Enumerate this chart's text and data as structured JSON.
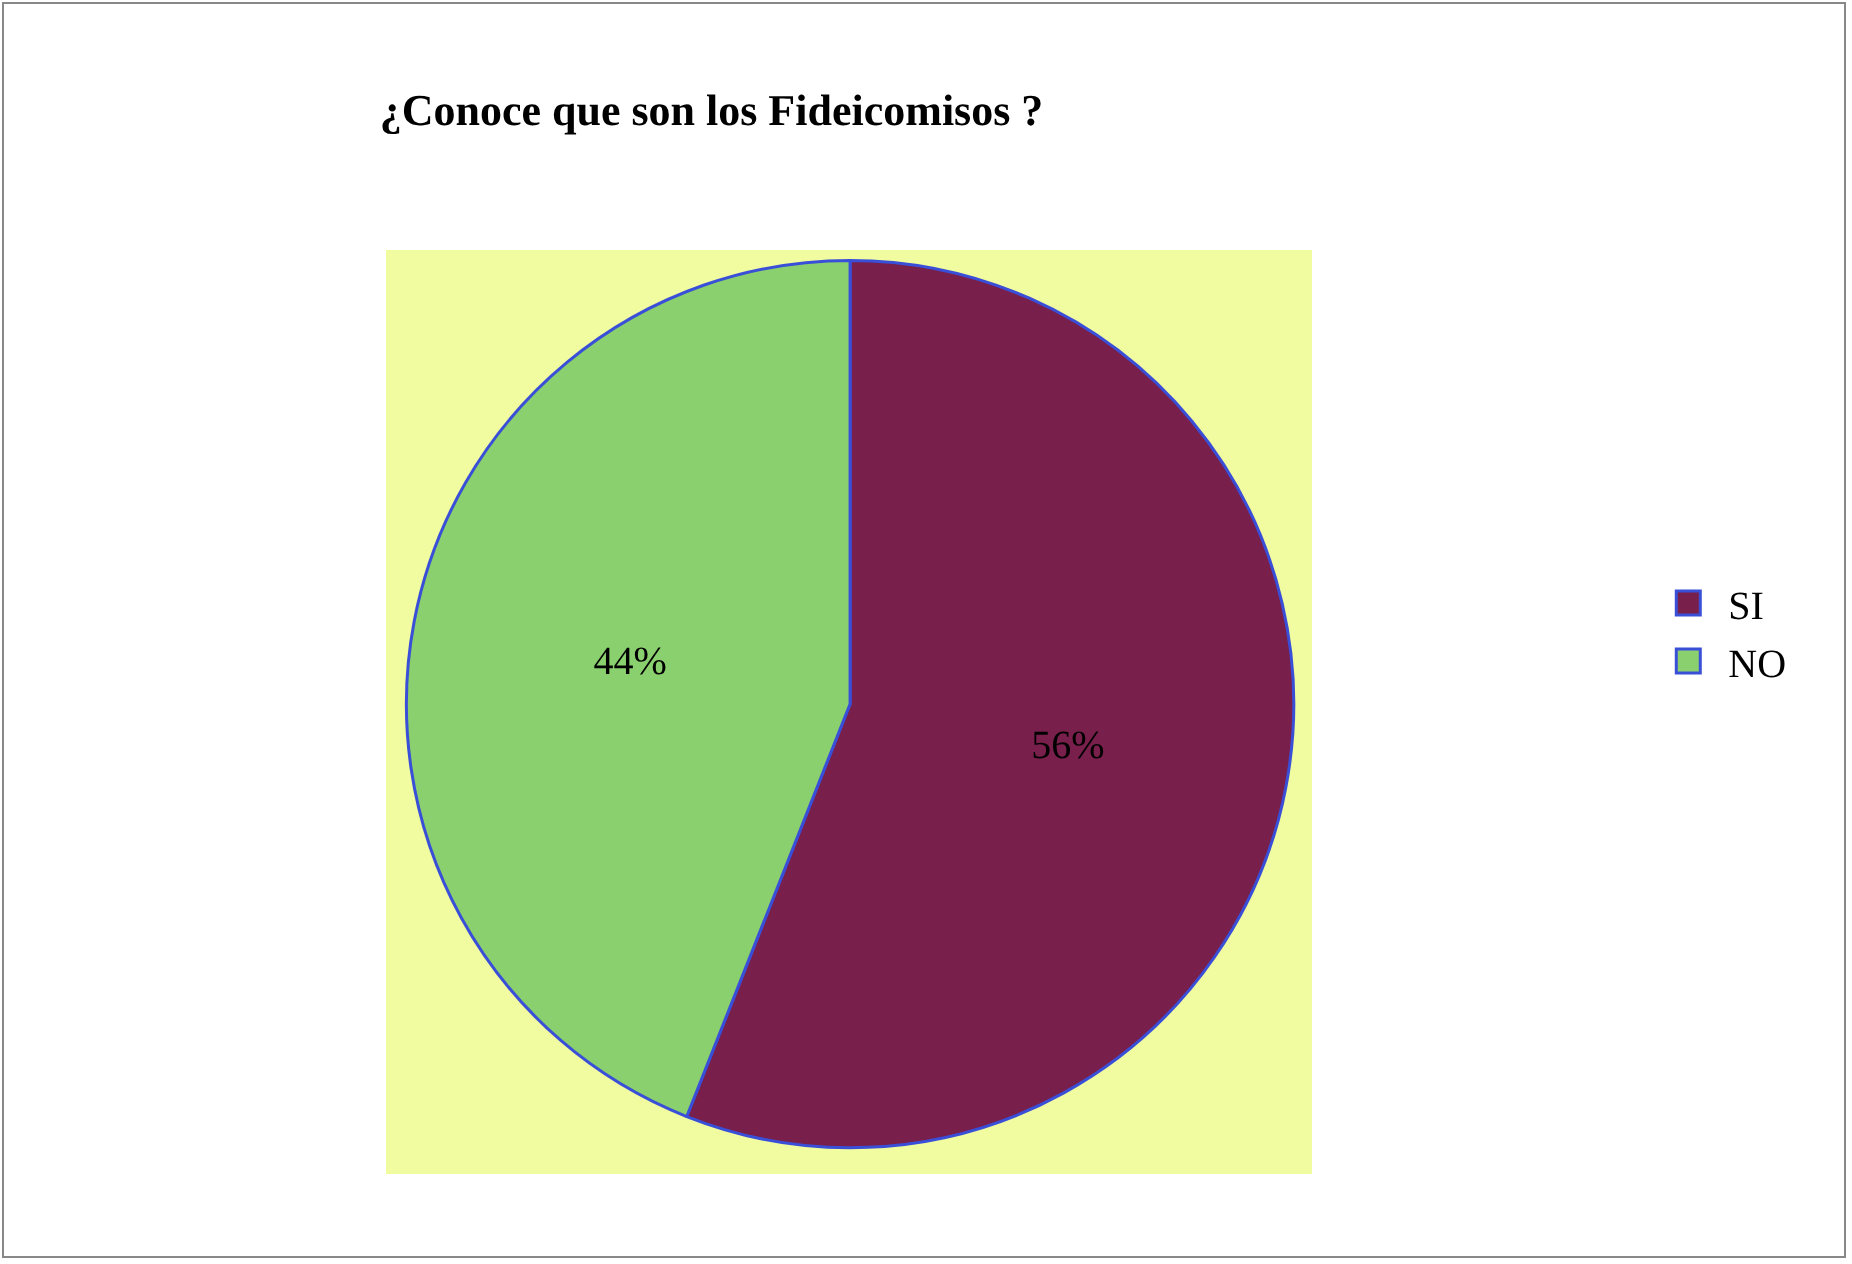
{
  "chart_data": {
    "type": "pie",
    "title": "¿Conoce que son los Fideicomisos ?",
    "categories": [
      "SI",
      "NO"
    ],
    "values": [
      56,
      44
    ],
    "colors": [
      "#781f4c",
      "#8ad06e"
    ],
    "value_labels": [
      "56%",
      "44%"
    ],
    "legend": "right"
  }
}
